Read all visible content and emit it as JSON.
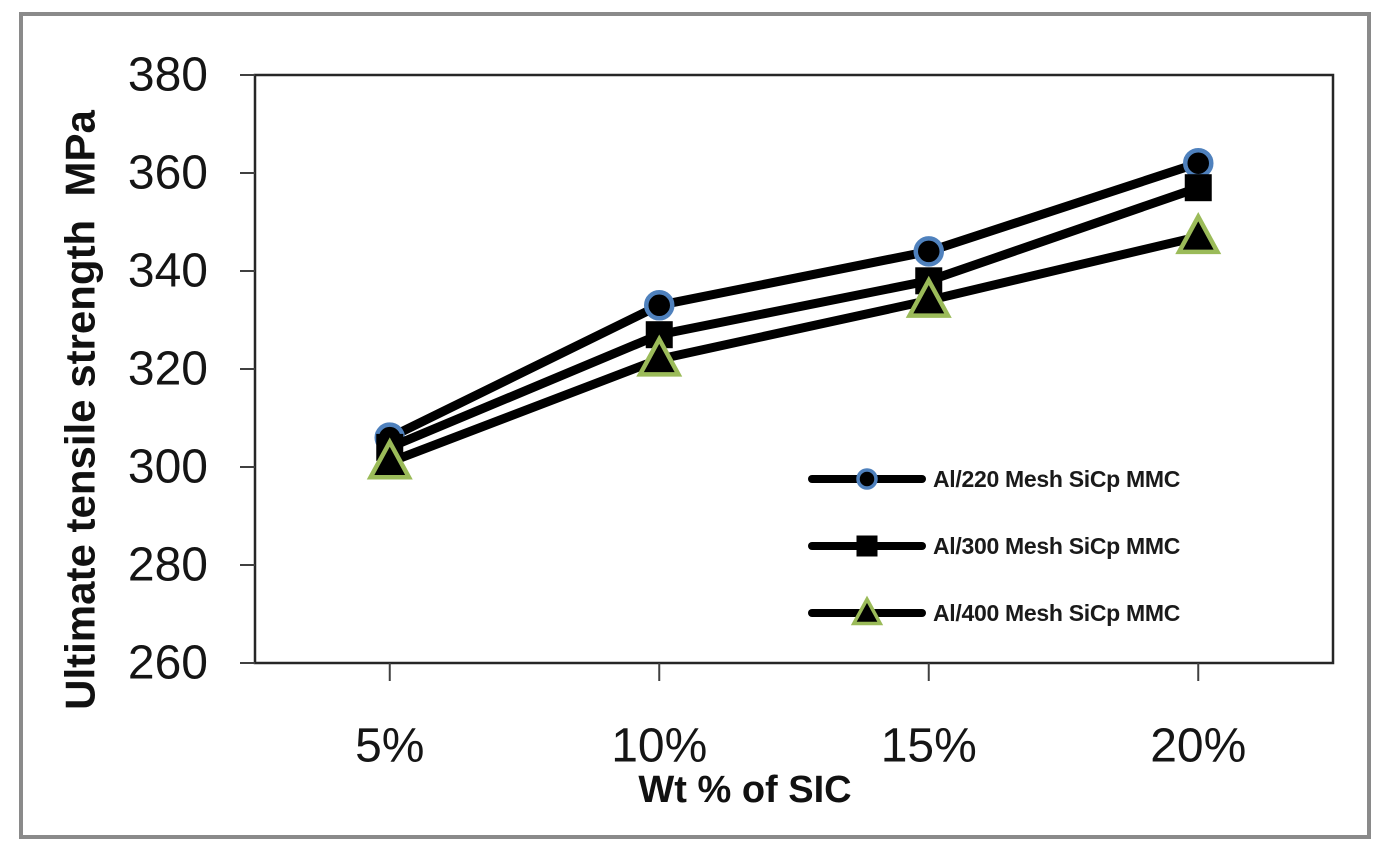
{
  "figure": {
    "border_color": "#8a8a8a",
    "background": "#ffffff"
  },
  "chart_data": {
    "type": "line",
    "title": "",
    "xlabel": "Wt % of SIC",
    "ylabel": "Ultimate tensile strength  MPa",
    "categories": [
      "5%",
      "10%",
      "15%",
      "20%"
    ],
    "series": [
      {
        "name": "Al/220 Mesh SiCp MMC",
        "marker": "circle",
        "marker_fill": "#000000",
        "marker_stroke": "#4f81bd",
        "values": [
          306,
          333,
          344,
          362
        ]
      },
      {
        "name": "Al/300 Mesh SiCp MMC",
        "marker": "square",
        "marker_fill": "#000000",
        "marker_stroke": "#000000",
        "values": [
          304,
          327,
          338,
          357
        ]
      },
      {
        "name": "Al/400 Mesh SiCp MMC",
        "marker": "triangle",
        "marker_fill": "#000000",
        "marker_stroke": "#9bbb59",
        "values": [
          301,
          322,
          334,
          347
        ]
      }
    ],
    "y_ticks": [
      260,
      280,
      300,
      320,
      340,
      360,
      380
    ],
    "ylim": [
      260,
      380
    ],
    "line_color": "#000000",
    "axis_color": "#262626",
    "tick_color": "#404040",
    "grid": false,
    "legend_position": "inside-right"
  }
}
